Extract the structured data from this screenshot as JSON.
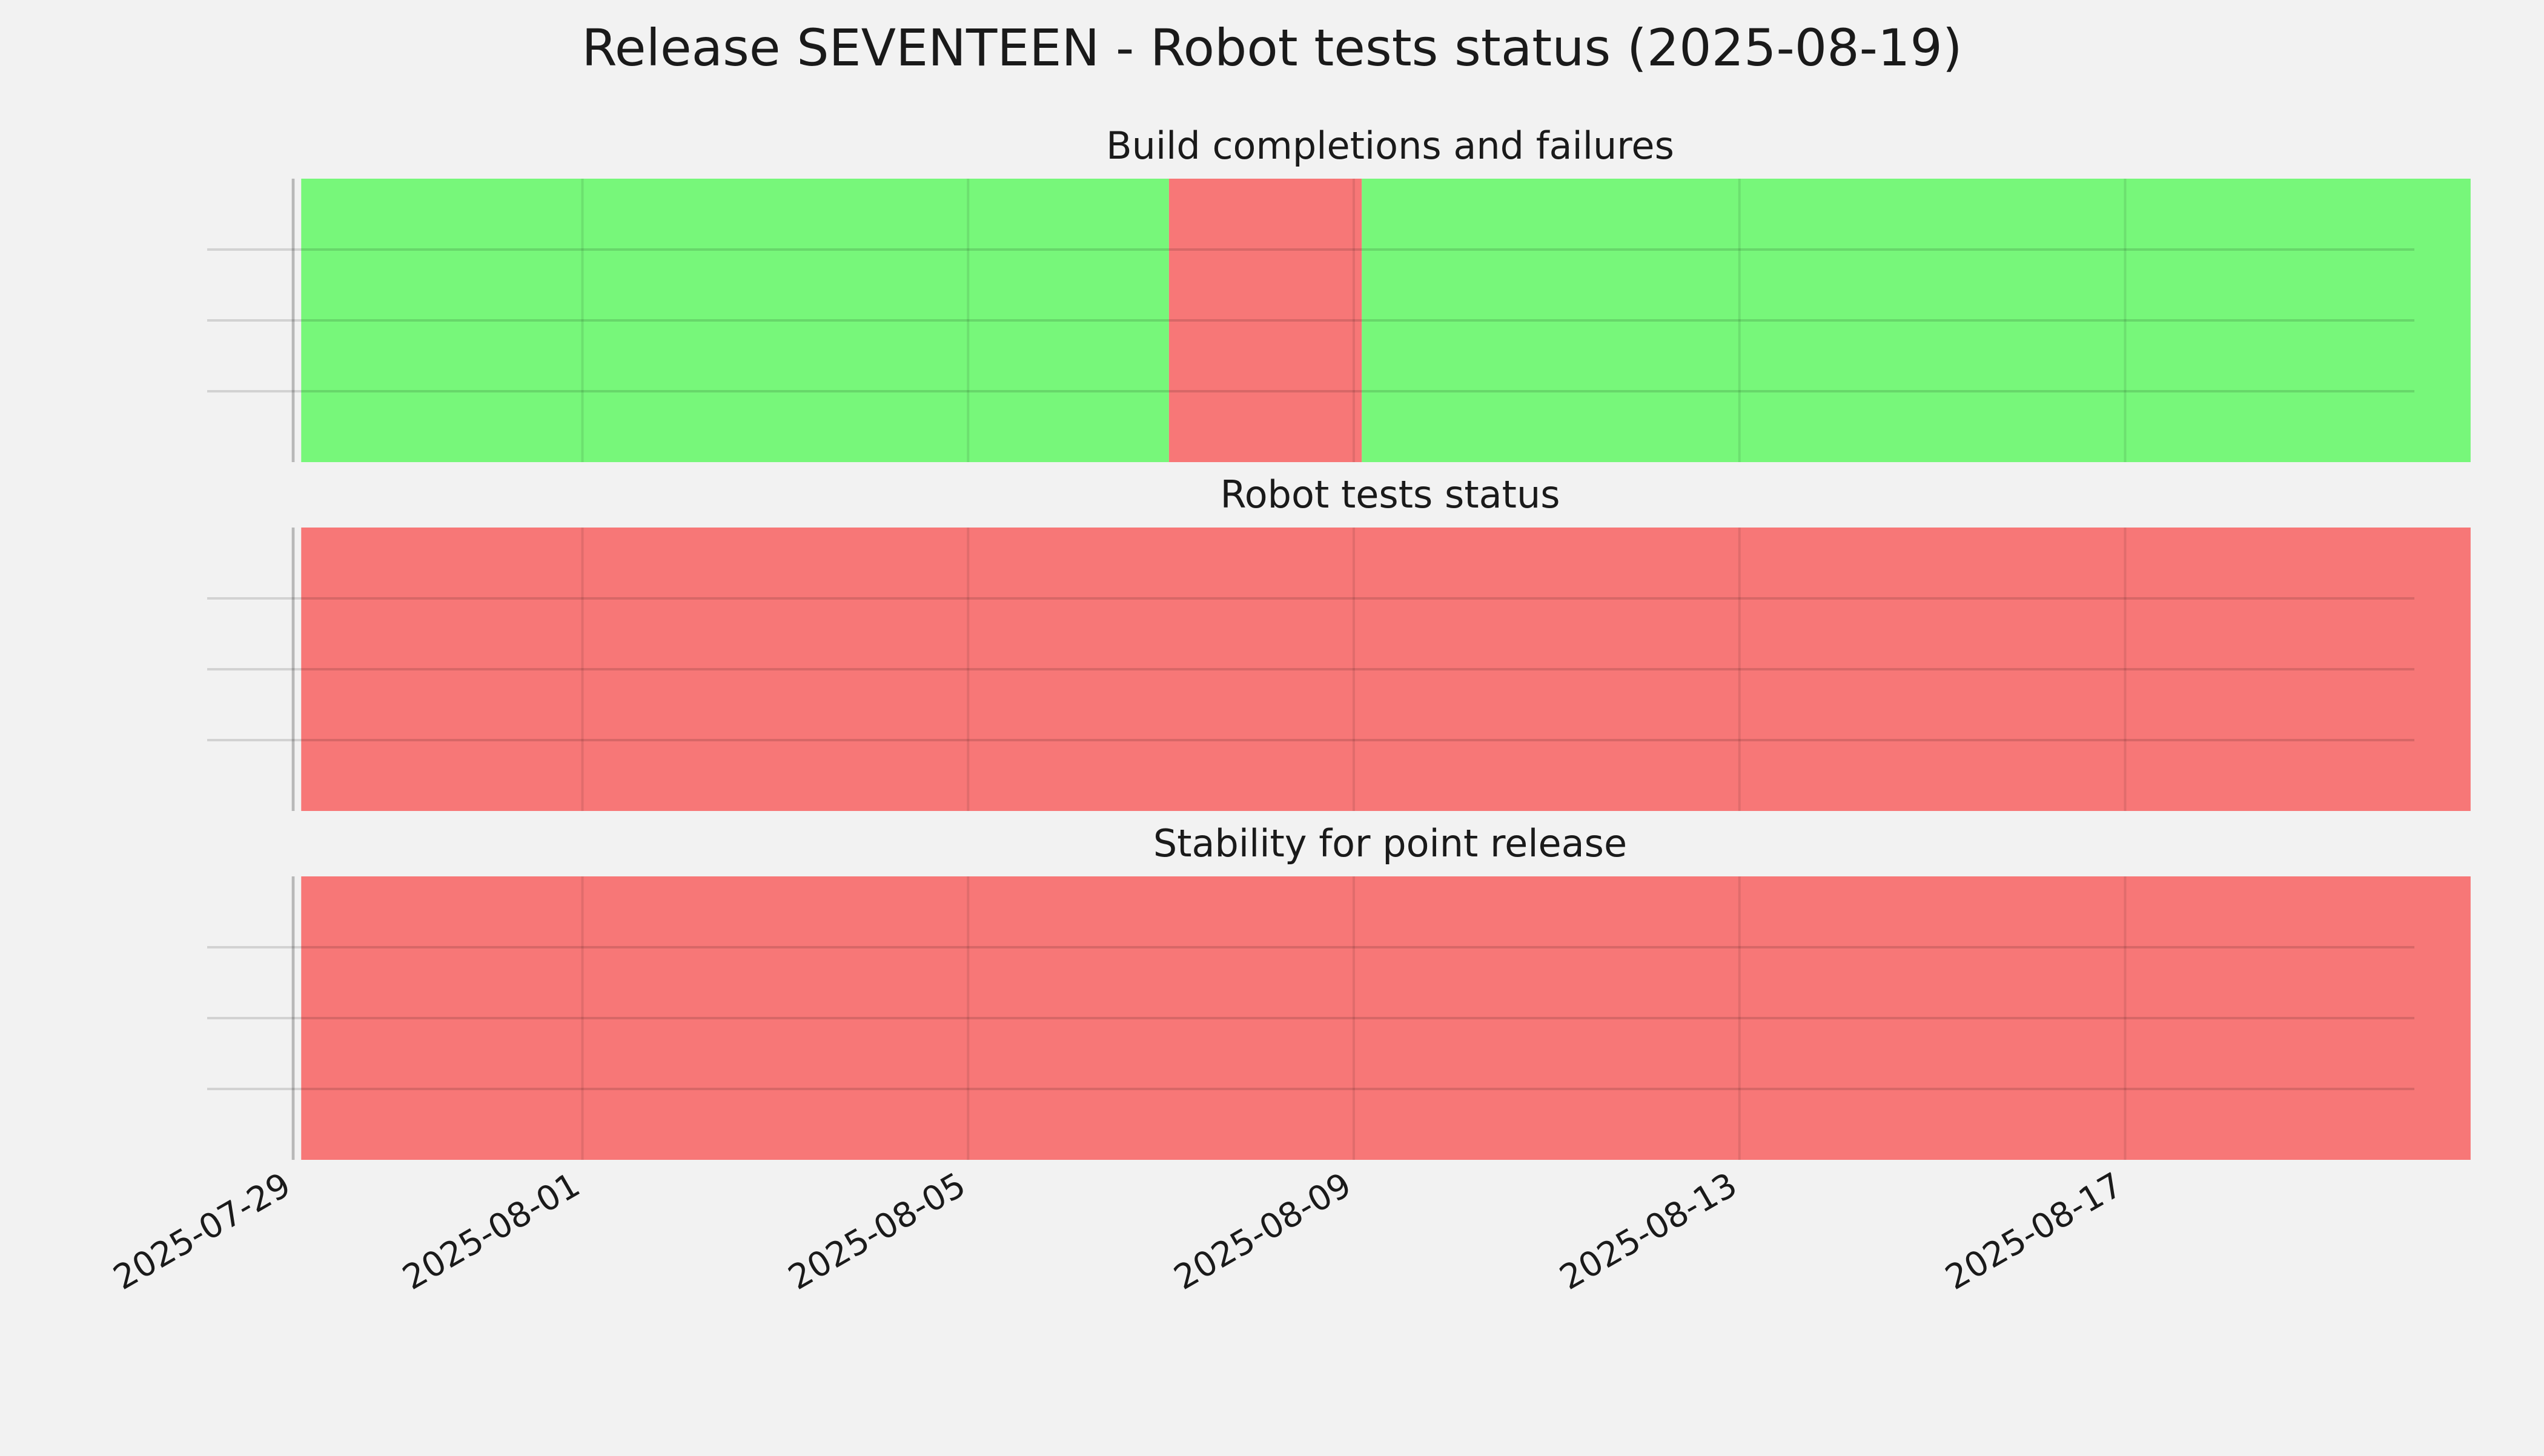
{
  "title": "Release SEVENTEEN - Robot tests status (2025-08-19)",
  "colors": {
    "pass": "#77f77a",
    "fail": "#f77777",
    "background": "#f2f2f2"
  },
  "chart_data": {
    "type": "timeline",
    "title": "Release SEVENTEEN - Robot tests status (2025-08-19)",
    "x_axis": {
      "type": "date",
      "range": [
        "2025-07-29",
        "2025-08-20"
      ],
      "ticks": [
        "2025-07-29",
        "2025-08-01",
        "2025-08-05",
        "2025-08-09",
        "2025-08-13",
        "2025-08-17"
      ]
    },
    "grid": true,
    "panels": [
      {
        "title": "Build completions and failures",
        "segments": [
          {
            "start": "2025-07-29T02:00",
            "end": "2025-08-07T02:00",
            "status": "pass"
          },
          {
            "start": "2025-08-07T02:00",
            "end": "2025-08-09T02:00",
            "status": "fail"
          },
          {
            "start": "2025-08-09T02:00",
            "end": "2025-08-20T14:00",
            "status": "pass"
          }
        ]
      },
      {
        "title": "Robot tests status",
        "segments": [
          {
            "start": "2025-07-29T02:00",
            "end": "2025-08-20T14:00",
            "status": "fail"
          }
        ]
      },
      {
        "title": "Stability for point release",
        "segments": [
          {
            "start": "2025-07-29T02:00",
            "end": "2025-08-20T14:00",
            "status": "fail"
          }
        ]
      }
    ]
  }
}
